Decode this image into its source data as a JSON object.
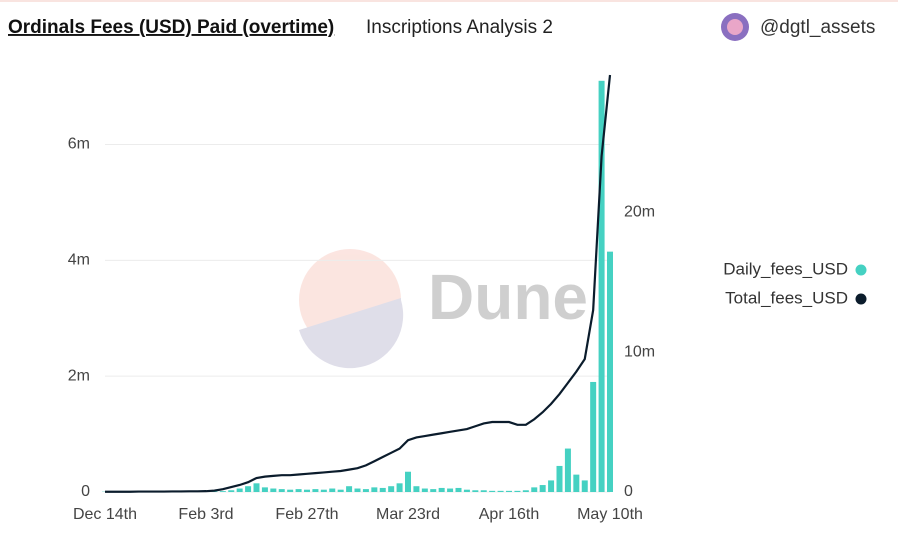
{
  "header": {
    "title": "Ordinals Fees (USD) Paid (overtime)",
    "subtitle": "Inscriptions Analysis 2",
    "user": "@dgtl_assets"
  },
  "watermark": "Dune",
  "chart_data": {
    "type": "bar_line",
    "categories": [
      "Dec 14th",
      null,
      null,
      null,
      null,
      null,
      null,
      null,
      null,
      null,
      null,
      null,
      "Feb 3rd",
      null,
      null,
      null,
      null,
      null,
      null,
      null,
      null,
      null,
      null,
      null,
      "Feb 27th",
      null,
      null,
      null,
      null,
      null,
      null,
      null,
      null,
      null,
      null,
      null,
      "Mar 23rd",
      null,
      null,
      null,
      null,
      null,
      null,
      null,
      null,
      null,
      null,
      null,
      "Apr 16th",
      null,
      null,
      null,
      null,
      null,
      null,
      null,
      null,
      null,
      null,
      null,
      "May 10th"
    ],
    "series": [
      {
        "name": "Daily_fees_USD",
        "color": "#45d1c2",
        "kind": "bar",
        "values": [
          5000,
          5000,
          5000,
          5000,
          5000,
          5000,
          5000,
          5000,
          5000,
          5000,
          5000,
          5000,
          5000,
          8000,
          15000,
          30000,
          60000,
          100000,
          150000,
          80000,
          60000,
          50000,
          40000,
          50000,
          40000,
          50000,
          40000,
          60000,
          40000,
          100000,
          60000,
          50000,
          80000,
          70000,
          100000,
          150000,
          350000,
          100000,
          60000,
          50000,
          70000,
          60000,
          70000,
          40000,
          30000,
          30000,
          20000,
          20000,
          20000,
          20000,
          30000,
          80000,
          120000,
          200000,
          450000,
          750000,
          300000,
          200000,
          1900000,
          7100000,
          4150000
        ]
      },
      {
        "name": "Total_fees_USD",
        "color": "#0b1c2c",
        "kind": "line",
        "axis": "y2",
        "values": [
          20000,
          20000,
          20000,
          20000,
          30000,
          30000,
          30000,
          30000,
          40000,
          40000,
          50000,
          50000,
          60000,
          100000,
          200000,
          350000,
          500000,
          700000,
          1000000,
          1100000,
          1150000,
          1200000,
          1200000,
          1250000,
          1300000,
          1350000,
          1400000,
          1450000,
          1500000,
          1600000,
          1700000,
          1900000,
          2200000,
          2500000,
          2800000,
          3100000,
          3700000,
          3900000,
          4000000,
          4100000,
          4200000,
          4300000,
          4400000,
          4500000,
          4700000,
          4900000,
          5000000,
          5000000,
          5000000,
          4800000,
          4800000,
          5200000,
          5700000,
          6300000,
          7000000,
          7800000,
          8600000,
          9500000,
          13000000,
          24000000,
          29800000
        ]
      }
    ],
    "ylim": [
      0,
      7200000
    ],
    "yticks": [
      0,
      {
        "value": 2000000,
        "label": "2m"
      },
      {
        "value": 4000000,
        "label": "4m"
      },
      {
        "value": 6000000,
        "label": "6m"
      }
    ],
    "y2lim": [
      0,
      29800000
    ],
    "y2ticks": [
      0,
      {
        "value": 10000000,
        "label": "10m"
      },
      {
        "value": 20000000,
        "label": "20m"
      }
    ],
    "grid": true,
    "legend": "right"
  }
}
